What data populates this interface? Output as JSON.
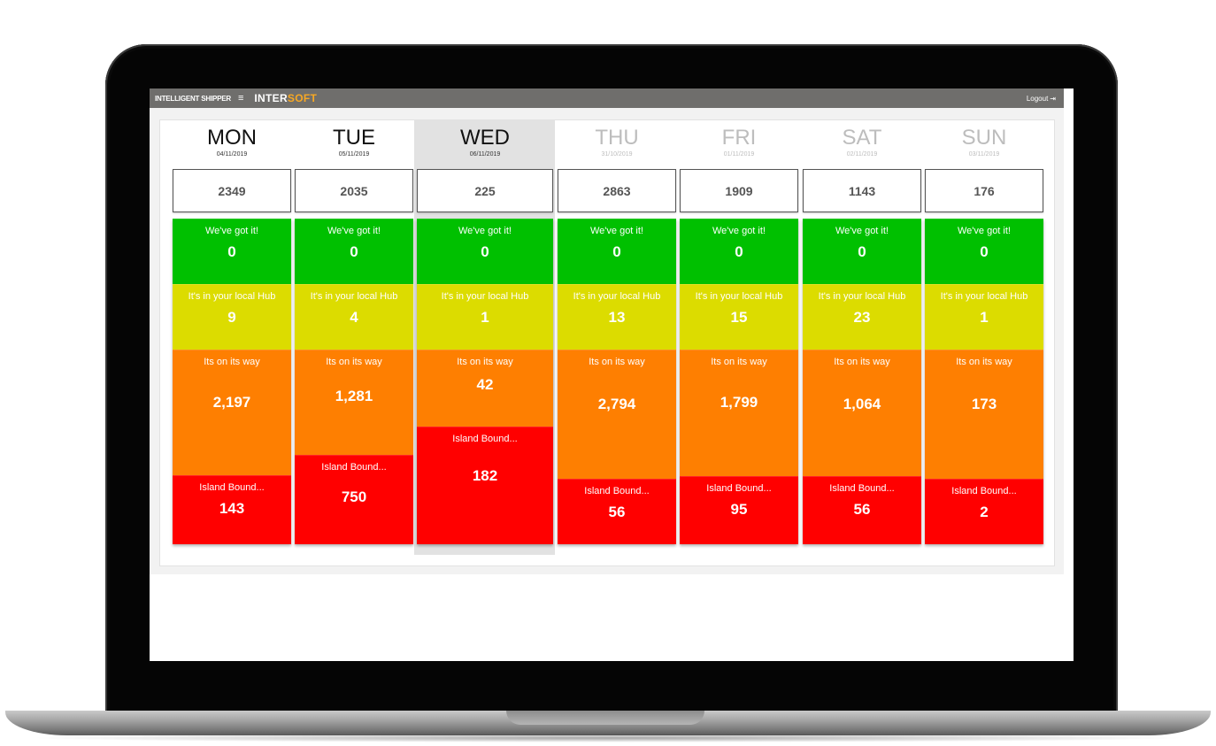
{
  "app": {
    "title": "INTELLIGENT SHIPPER",
    "menu_icon": "hamburger-menu-icon",
    "logo_part1": "INTER",
    "logo_part2": "SOFT",
    "logo_accent": "#f7a823",
    "logout_label": "Logout",
    "logout_icon": "logout-icon"
  },
  "colors": {
    "got": "#00c000",
    "hub": "#dcdc00",
    "way": "#fe7f01",
    "island": "#ff0000"
  },
  "days": [
    {
      "name": "MON",
      "date": "04/11/2019",
      "total": "2349",
      "got_label": "We've got it!",
      "got": "0",
      "hub_label": "It's in your local Hub",
      "hub": "9",
      "way_label": "Its on its way",
      "way": "2,197",
      "island_label": "Island Bound...",
      "island": "143"
    },
    {
      "name": "TUE",
      "date": "05/11/2019",
      "total": "2035",
      "got_label": "We've got it!",
      "got": "0",
      "hub_label": "It's in your local Hub",
      "hub": "4",
      "way_label": "Its on its way",
      "way": "1,281",
      "island_label": "Island Bound...",
      "island": "750"
    },
    {
      "name": "WED",
      "date": "06/11/2019",
      "total": "225",
      "got_label": "We've got it!",
      "got": "0",
      "hub_label": "It's in your local Hub",
      "hub": "1",
      "way_label": "Its on its way",
      "way": "42",
      "island_label": "Island Bound...",
      "island": "182"
    },
    {
      "name": "THU",
      "date": "31/10/2019",
      "total": "2863",
      "got_label": "We've got it!",
      "got": "0",
      "hub_label": "It's in your local Hub",
      "hub": "13",
      "way_label": "Its on its way",
      "way": "2,794",
      "island_label": "Island Bound...",
      "island": "56"
    },
    {
      "name": "FRI",
      "date": "01/11/2019",
      "total": "1909",
      "got_label": "We've got it!",
      "got": "0",
      "hub_label": "It's in your local Hub",
      "hub": "15",
      "way_label": "Its on its way",
      "way": "1,799",
      "island_label": "Island Bound...",
      "island": "95"
    },
    {
      "name": "SAT",
      "date": "02/11/2019",
      "total": "1143",
      "got_label": "We've got it!",
      "got": "0",
      "hub_label": "It's in your local Hub",
      "hub": "23",
      "way_label": "Its on its way",
      "way": "1,064",
      "island_label": "Island Bound...",
      "island": "56"
    },
    {
      "name": "SUN",
      "date": "03/11/2019",
      "total": "176",
      "got_label": "We've got it!",
      "got": "0",
      "hub_label": "It's in your local Hub",
      "hub": "1",
      "way_label": "Its on its way",
      "way": "173",
      "island_label": "Island Bound...",
      "island": "2"
    }
  ]
}
